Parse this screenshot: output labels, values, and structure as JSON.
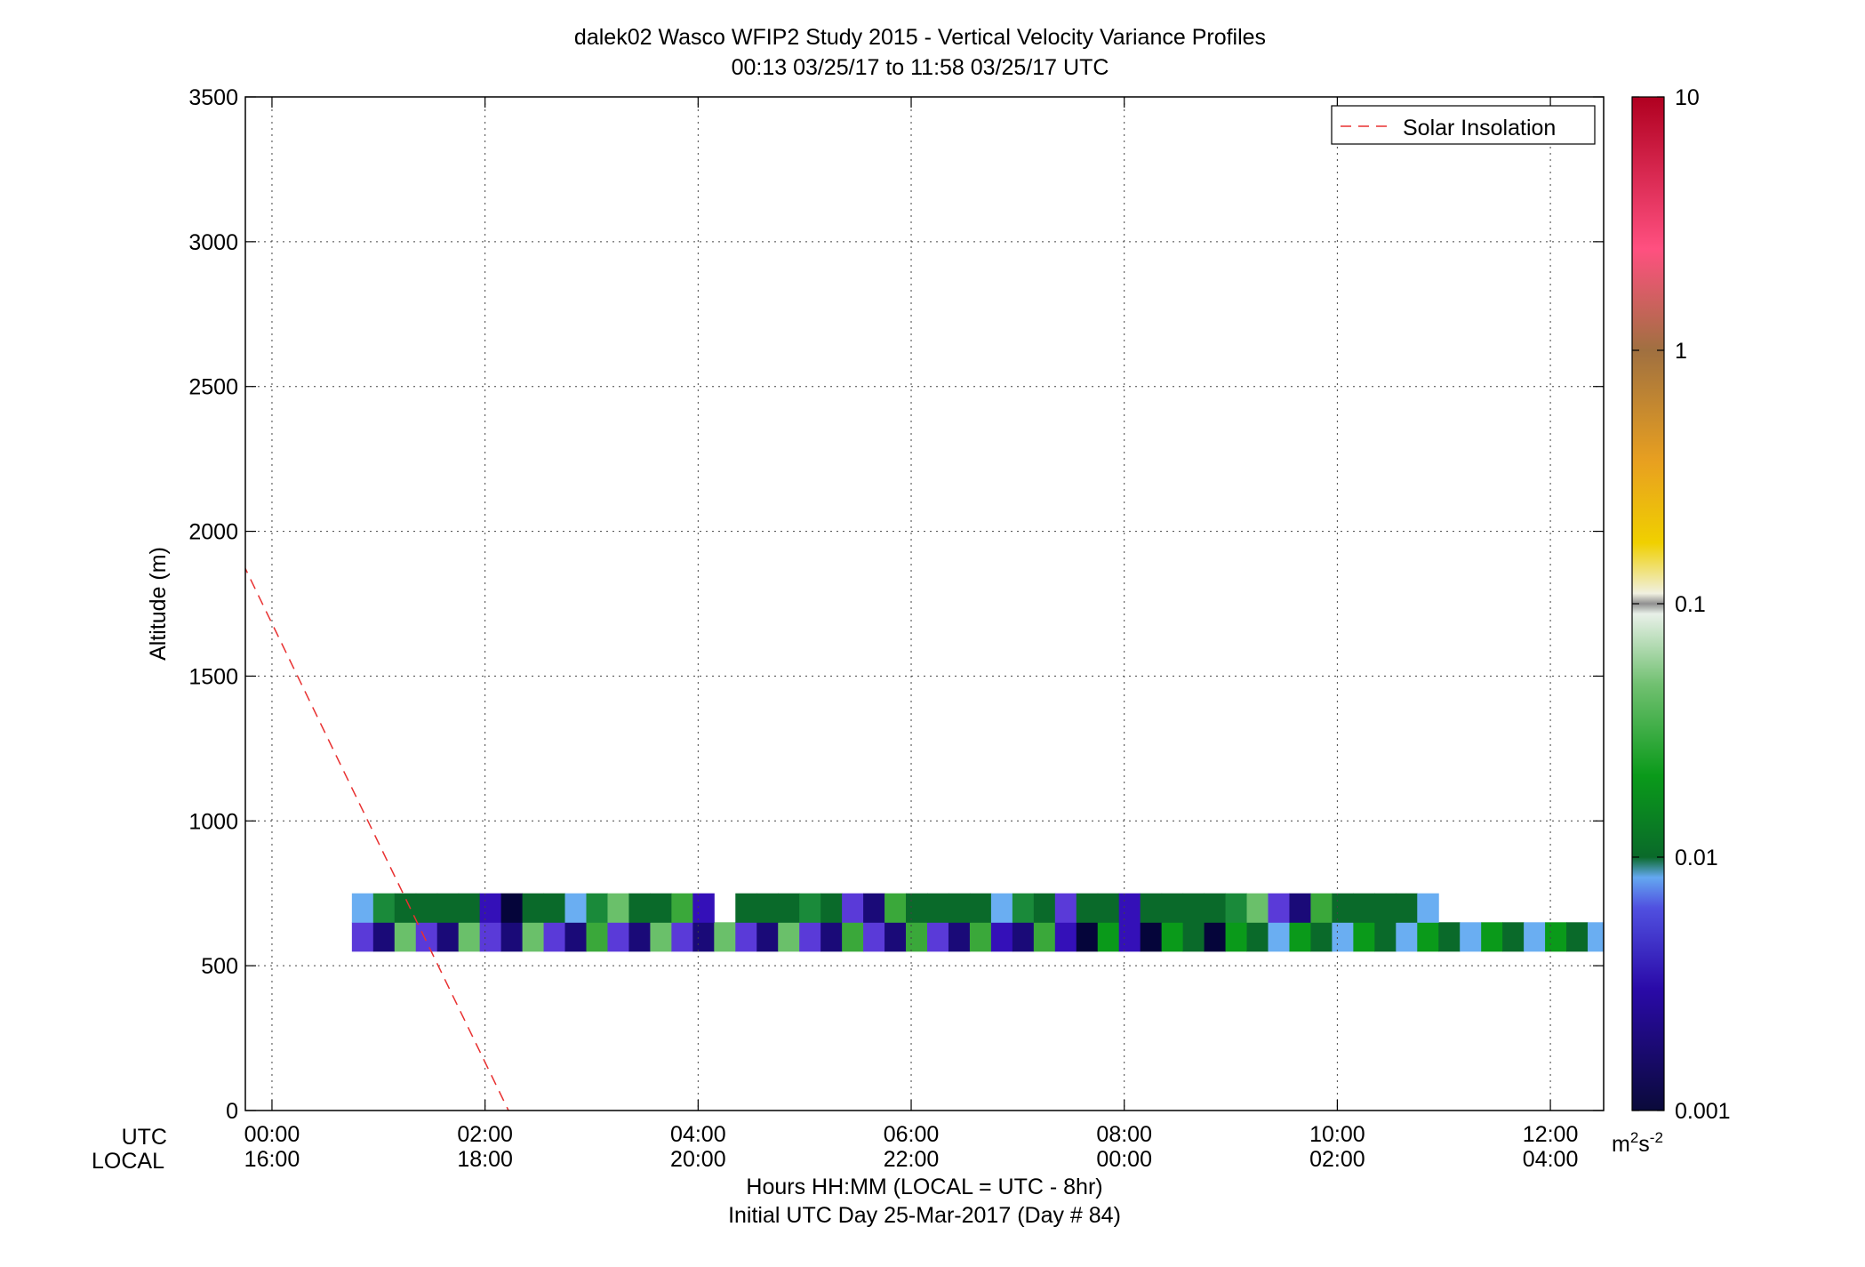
{
  "chart_data": {
    "type": "heatmap",
    "title": "dalek02 Wasco WFIP2 Study 2015 - Vertical Velocity Variance Profiles",
    "subtitle": "00:13 03/25/17 to 11:58 03/25/17  UTC",
    "ylabel": "Altitude (m)",
    "ylim": [
      0,
      3500
    ],
    "y_ticks": [
      "0",
      "500",
      "1000",
      "1500",
      "2000",
      "2500",
      "3000",
      "3500"
    ],
    "y_tick_values": [
      0,
      500,
      1000,
      1500,
      2000,
      2500,
      3000,
      3500
    ],
    "xlim": [
      -0.25,
      12.5
    ],
    "x_tick_values": [
      0,
      2,
      4,
      6,
      8,
      10,
      12
    ],
    "x_ticks_utc": [
      "00:00",
      "02:00",
      "04:00",
      "06:00",
      "08:00",
      "10:00",
      "12:00"
    ],
    "x_ticks_local": [
      "16:00",
      "18:00",
      "20:00",
      "22:00",
      "00:00",
      "02:00",
      "04:00"
    ],
    "x_row_label_utc": "UTC",
    "x_row_label_local": "LOCAL",
    "xlabel": "Hours HH:MM  (LOCAL = UTC - 8hr)",
    "xlabel2": "Initial UTC Day 25-Mar-2017 (Day # 84)",
    "grid": true,
    "legend": {
      "position": "top-right",
      "entries": [
        {
          "name": "Solar Insolation",
          "color": "#e83030",
          "style": "dashed"
        }
      ]
    },
    "solar_insolation": {
      "x": [
        -0.42,
        2.22
      ],
      "y": [
        2000,
        0
      ]
    },
    "colorbar": {
      "scale": "log",
      "range": [
        0.001,
        10
      ],
      "ticks": [
        "0.001",
        "0.01",
        "0.1",
        "1",
        "10"
      ],
      "tick_values": [
        0.001,
        0.01,
        0.1,
        1,
        10
      ],
      "unit_base": "m",
      "unit_sup1": "2",
      "unit_mid": "s",
      "unit_sup2": "-2"
    },
    "grid_x0": 0.25,
    "grid_dx": 0.2,
    "grid_y0": 200,
    "grid_dy": 100,
    "cells": [
      "................................................................................................................................",
      ".......................................................................................................................",
      "............................................................................................................",
      ".....................................................",
      "...1122233344445566677788889990000111112222333344455566677788889999...................",
      "...ggGGGGggGggggGGgg.GGGgGgggGGGGggGgGGgGGgGgggggGGGgg..."
    ]
  }
}
